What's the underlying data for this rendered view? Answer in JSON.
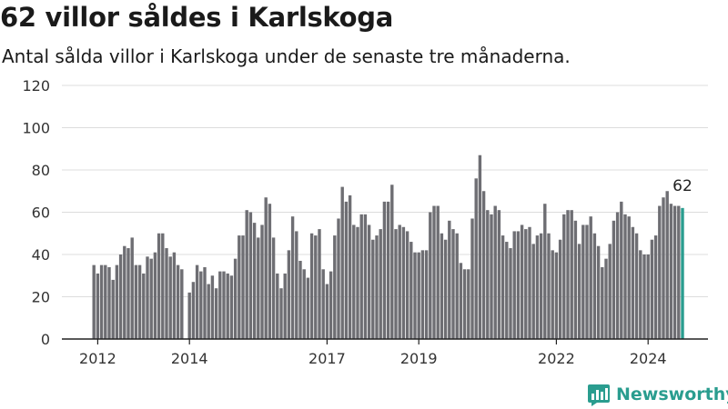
{
  "title": "62 villor såldes i Karlskoga",
  "subtitle": "Antal sålda villor i Karlskoga under de senaste tre månaderna.",
  "brand": {
    "name": "Newsworthy",
    "icon": "newsworthy-logo-icon",
    "color": "#2a9d8f"
  },
  "chart_data": {
    "type": "bar",
    "title": "62 villor såldes i Karlskoga",
    "xlabel": "",
    "ylabel": "",
    "ylim": [
      0,
      120
    ],
    "yticks": [
      0,
      20,
      40,
      60,
      80,
      100,
      120
    ],
    "xticks": [
      "2012",
      "2014",
      "2017",
      "2019",
      "2022",
      "2024"
    ],
    "grid": "horizontal",
    "bar_color": "#6e6e73",
    "highlight_color": "#2a9d8f",
    "highlight_label": "62",
    "start": "2011-12",
    "values": [
      35,
      31,
      35,
      35,
      34,
      28,
      35,
      40,
      44,
      43,
      48,
      35,
      35,
      31,
      39,
      38,
      41,
      50,
      50,
      43,
      39,
      41,
      35,
      33,
      0,
      22,
      27,
      35,
      32,
      34,
      26,
      30,
      24,
      32,
      32,
      31,
      30,
      38,
      49,
      49,
      61,
      60,
      55,
      48,
      54,
      67,
      64,
      48,
      31,
      24,
      31,
      42,
      58,
      51,
      37,
      33,
      29,
      50,
      49,
      52,
      33,
      26,
      32,
      49,
      57,
      72,
      65,
      68,
      54,
      53,
      59,
      59,
      54,
      47,
      49,
      52,
      65,
      65,
      73,
      52,
      54,
      53,
      51,
      46,
      41,
      41,
      42,
      42,
      60,
      63,
      63,
      50,
      47,
      56,
      52,
      50,
      36,
      33,
      33,
      57,
      76,
      87,
      70,
      61,
      59,
      63,
      61,
      49,
      46,
      43,
      51,
      51,
      54,
      52,
      53,
      45,
      49,
      50,
      64,
      50,
      42,
      41,
      47,
      59,
      61,
      61,
      56,
      45,
      54,
      54,
      58,
      50,
      44,
      34,
      38,
      45,
      56,
      60,
      65,
      59,
      58,
      53,
      50,
      42,
      40,
      40,
      47,
      49,
      63,
      67,
      70,
      64,
      63,
      63,
      62
    ]
  }
}
